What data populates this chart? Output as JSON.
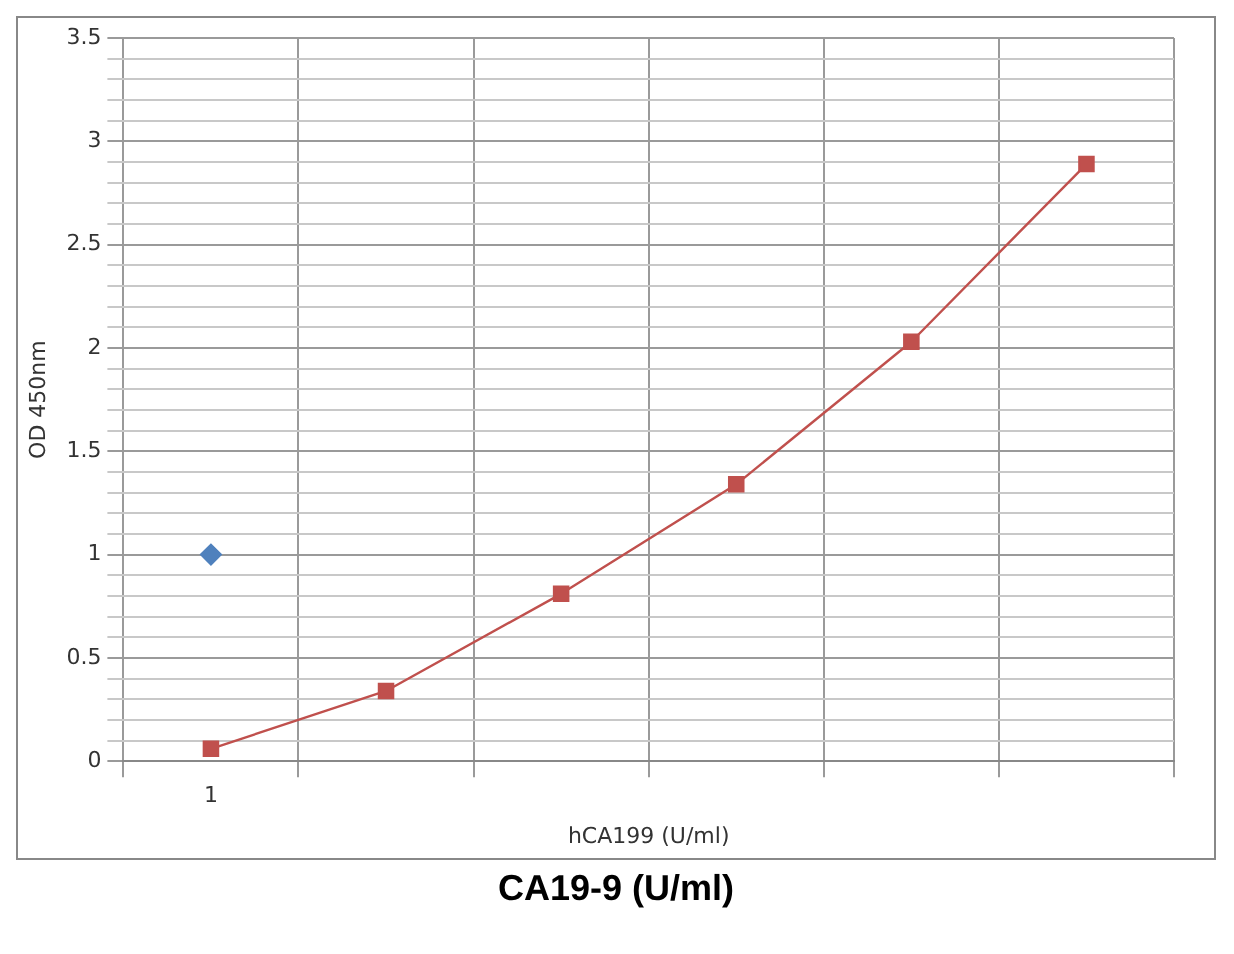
{
  "chart_data": {
    "type": "line",
    "xlabel": "hCA199 (U/ml)",
    "ylabel": "OD 450nm",
    "annotations": [
      "CA19-9 (U/ml)"
    ],
    "categories": [
      "1",
      null,
      null,
      null,
      null,
      null
    ],
    "series": [
      {
        "color": "#c0504d",
        "marker": "square",
        "values": [
          0.06,
          0.34,
          0.81,
          1.34,
          2.03,
          2.89
        ]
      },
      {
        "type": "scatter",
        "color": "#4f81bd",
        "marker": "diamond",
        "values": [
          1,
          null,
          null,
          null,
          null,
          null
        ]
      }
    ],
    "ylim": [
      0,
      3.5
    ],
    "yticks": [
      0,
      {
        "value": 0.1,
        "label": null
      },
      {
        "value": 0.2,
        "label": null
      },
      {
        "value": 0.3,
        "label": null
      },
      {
        "value": 0.4,
        "label": null
      },
      0.5,
      {
        "value": 0.6,
        "label": null
      },
      {
        "value": 0.7,
        "label": null
      },
      {
        "value": 0.8,
        "label": null
      },
      {
        "value": 0.9,
        "label": null
      },
      1,
      {
        "value": 1.1,
        "label": null
      },
      {
        "value": 1.2,
        "label": null
      },
      {
        "value": 1.3,
        "label": null
      },
      {
        "value": 1.4,
        "label": null
      },
      1.5,
      {
        "value": 1.6,
        "label": null
      },
      {
        "value": 1.7,
        "label": null
      },
      {
        "value": 1.8,
        "label": null
      },
      {
        "value": 1.9,
        "label": null
      },
      2,
      {
        "value": 2.1,
        "label": null
      },
      {
        "value": 2.2,
        "label": null
      },
      {
        "value": 2.3,
        "label": null
      },
      {
        "value": 2.4,
        "label": null
      },
      2.5,
      {
        "value": 2.6,
        "label": null
      },
      {
        "value": 2.7,
        "label": null
      },
      {
        "value": 2.8,
        "label": null
      },
      {
        "value": 2.9,
        "label": null
      },
      3,
      {
        "value": 3.1,
        "label": null
      },
      {
        "value": 3.2,
        "label": null
      },
      {
        "value": 3.3,
        "label": null
      },
      {
        "value": 3.4,
        "label": null
      },
      3.5
    ],
    "grid": true,
    "legend": false
  }
}
